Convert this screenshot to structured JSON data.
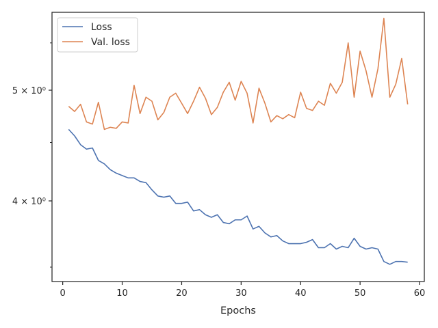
{
  "chart_data": {
    "type": "line",
    "title": "",
    "xlabel": "Epochs",
    "ylabel": "",
    "xlim": [
      -1.8,
      60.8
    ],
    "ylim": [
      3.4,
      5.85
    ],
    "y_scale": "log",
    "grid": false,
    "legend_position": "top-left",
    "x_ticks": [
      0,
      10,
      20,
      30,
      40,
      50,
      60
    ],
    "x_tick_labels": [
      "0",
      "10",
      "20",
      "30",
      "40",
      "50",
      "60"
    ],
    "y_ticks": [
      4,
      5
    ],
    "y_tick_labels": [
      "4 × 10⁰",
      "5 × 10⁰"
    ],
    "x": [
      1,
      2,
      3,
      4,
      5,
      6,
      7,
      8,
      9,
      10,
      11,
      12,
      13,
      14,
      15,
      16,
      17,
      18,
      19,
      20,
      21,
      22,
      23,
      24,
      25,
      26,
      27,
      28,
      29,
      30,
      31,
      32,
      33,
      34,
      35,
      36,
      37,
      38,
      39,
      40,
      41,
      42,
      43,
      44,
      45,
      46,
      47,
      48,
      49,
      50,
      51,
      52,
      53,
      54,
      55,
      56,
      57,
      58
    ],
    "series": [
      {
        "name": "Loss",
        "color": "#4c72b0",
        "values": [
          4.62,
          4.56,
          4.48,
          4.44,
          4.45,
          4.34,
          4.31,
          4.26,
          4.23,
          4.21,
          4.19,
          4.19,
          4.16,
          4.15,
          4.09,
          4.04,
          4.03,
          4.04,
          3.98,
          3.98,
          3.99,
          3.92,
          3.93,
          3.89,
          3.87,
          3.89,
          3.83,
          3.82,
          3.85,
          3.85,
          3.88,
          3.78,
          3.8,
          3.75,
          3.72,
          3.73,
          3.69,
          3.67,
          3.67,
          3.67,
          3.68,
          3.7,
          3.64,
          3.64,
          3.67,
          3.63,
          3.65,
          3.64,
          3.71,
          3.65,
          3.63,
          3.64,
          3.63,
          3.54,
          3.52,
          3.54,
          3.54,
          3.535
        ]
      },
      {
        "name": "Val. loss",
        "color": "#dd8452",
        "values": [
          4.84,
          4.79,
          4.86,
          4.69,
          4.67,
          4.88,
          4.62,
          4.64,
          4.63,
          4.69,
          4.68,
          5.05,
          4.77,
          4.93,
          4.89,
          4.71,
          4.78,
          4.93,
          4.97,
          4.87,
          4.77,
          4.89,
          5.03,
          4.92,
          4.76,
          4.83,
          4.98,
          5.08,
          4.9,
          5.09,
          4.97,
          4.68,
          5.02,
          4.87,
          4.69,
          4.75,
          4.72,
          4.76,
          4.73,
          4.98,
          4.82,
          4.8,
          4.89,
          4.85,
          5.07,
          4.97,
          5.08,
          5.5,
          4.93,
          5.41,
          5.2,
          4.93,
          5.22,
          5.78,
          4.93,
          5.06,
          5.33,
          4.86
        ]
      }
    ]
  }
}
